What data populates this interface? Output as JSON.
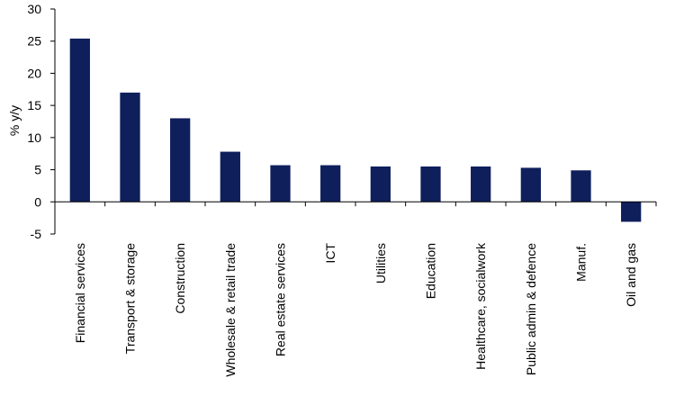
{
  "chart_data": {
    "type": "bar",
    "categories": [
      "Financial services",
      "Transport & storage",
      "Construction",
      "Wholesale & retail trade",
      "Real estate services",
      "ICT",
      "Utilities",
      "Education",
      "Healthcare, socialwork",
      "Public admin & defence",
      "Manuf.",
      "Oil and gas"
    ],
    "values": [
      25.4,
      17.0,
      13.0,
      7.8,
      5.7,
      5.7,
      5.5,
      5.5,
      5.5,
      5.3,
      4.9,
      -3.1
    ],
    "ylabel": "% y/y",
    "ylim": [
      -5,
      30
    ],
    "yticks": [
      -5,
      0,
      5,
      10,
      15,
      20,
      25,
      30
    ],
    "grid": false,
    "legend": "none",
    "colors": {
      "bar": "#0f1f5c",
      "axis": "#000000"
    }
  }
}
